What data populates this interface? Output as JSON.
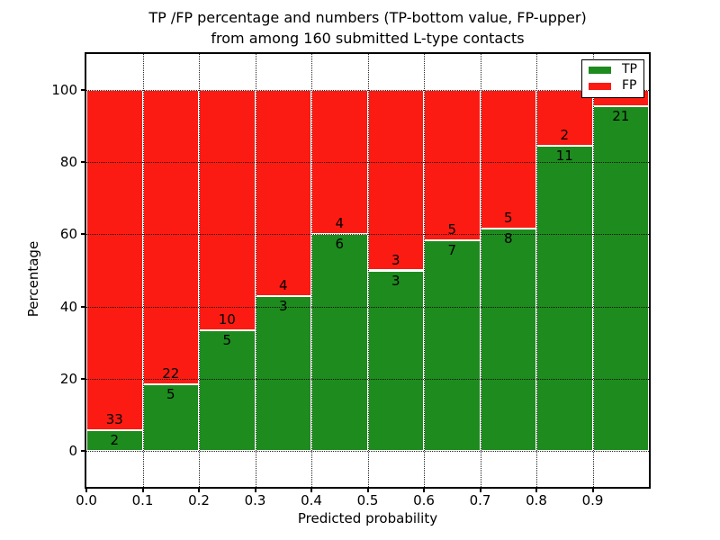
{
  "title": {
    "line1": "TP /FP percentage and numbers (TP-bottom value, FP-upper)",
    "line2": "from among 160 submitted L-type contacts"
  },
  "axes": {
    "ylabel": "Percentage",
    "xlabel": "Predicted probability",
    "y_ticks": [
      {
        "value": 0,
        "label": "0"
      },
      {
        "value": 20,
        "label": "20"
      },
      {
        "value": 40,
        "label": "40"
      },
      {
        "value": 60,
        "label": "60"
      },
      {
        "value": 80,
        "label": "80"
      },
      {
        "value": 100,
        "label": "100"
      }
    ],
    "x_ticks": [
      {
        "value": 0.0,
        "label": "0.0"
      },
      {
        "value": 0.1,
        "label": "0.1"
      },
      {
        "value": 0.2,
        "label": "0.2"
      },
      {
        "value": 0.3,
        "label": "0.3"
      },
      {
        "value": 0.4,
        "label": "0.4"
      },
      {
        "value": 0.5,
        "label": "0.5"
      },
      {
        "value": 0.6,
        "label": "0.6"
      },
      {
        "value": 0.7,
        "label": "0.7"
      },
      {
        "value": 0.8,
        "label": "0.8"
      },
      {
        "value": 0.9,
        "label": "0.9"
      }
    ]
  },
  "legend": {
    "items": [
      {
        "label": "TP",
        "color": "#1e8b1e"
      },
      {
        "label": "FP",
        "color": "#fc1b13"
      }
    ]
  },
  "chart_data": {
    "type": "bar",
    "stacked": true,
    "title": "TP /FP percentage and numbers (TP-bottom value, FP-upper) from among 160 submitted L-type contacts",
    "xlabel": "Predicted probability",
    "ylabel": "Percentage",
    "xlim": [
      0,
      1.0
    ],
    "ylim": [
      -10,
      110
    ],
    "grid": true,
    "grid_style": "dotted",
    "legend_position": "upper right",
    "total_contacts": 160,
    "bin_edges": [
      0.0,
      0.1,
      0.2,
      0.3,
      0.4,
      0.5,
      0.6,
      0.7,
      0.8,
      0.9,
      1.0
    ],
    "categories": [
      "0.0-0.1",
      "0.1-0.2",
      "0.2-0.3",
      "0.3-0.4",
      "0.4-0.5",
      "0.5-0.6",
      "0.6-0.7",
      "0.7-0.8",
      "0.8-0.9",
      "0.9-1.0"
    ],
    "series": [
      {
        "name": "TP",
        "color": "#1e8b1e",
        "counts": [
          2,
          5,
          5,
          3,
          6,
          3,
          7,
          8,
          11,
          21
        ],
        "pct": [
          5.71,
          18.52,
          33.33,
          42.86,
          60.0,
          50.0,
          58.33,
          61.54,
          84.62,
          95.45
        ]
      },
      {
        "name": "FP",
        "color": "#fc1b13",
        "counts": [
          33,
          22,
          10,
          4,
          4,
          3,
          5,
          5,
          2,
          1
        ],
        "pct": [
          94.29,
          81.48,
          66.67,
          57.14,
          40.0,
          50.0,
          41.67,
          38.46,
          15.38,
          4.55
        ]
      }
    ],
    "bar_labels": {
      "tp": [
        "2",
        "5",
        "5",
        "3",
        "6",
        "3",
        "7",
        "8",
        "11",
        "21"
      ],
      "fp": [
        "33",
        "22",
        "10",
        "4",
        "4",
        "3",
        "5",
        "5",
        "2",
        ""
      ]
    }
  }
}
